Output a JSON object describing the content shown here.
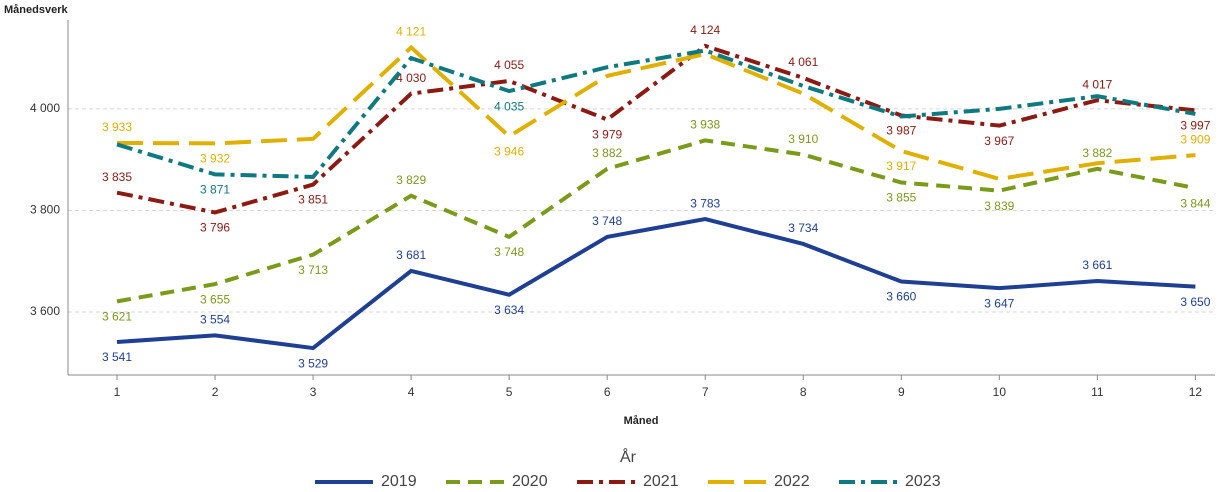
{
  "chart_data": {
    "type": "line",
    "y_label": "Månedsverk",
    "x_label": "Måned",
    "legend_title": "År",
    "x": [
      1,
      2,
      3,
      4,
      5,
      6,
      7,
      8,
      9,
      10,
      11,
      12
    ],
    "xlim": [
      0.5,
      12.2
    ],
    "xticks": [
      1,
      2,
      3,
      4,
      5,
      6,
      7,
      8,
      9,
      10,
      11,
      12
    ],
    "ylim": [
      3476,
      4175
    ],
    "yticks": [
      {
        "value": 3600,
        "label": "3 600"
      },
      {
        "value": 3800,
        "label": "3 800"
      },
      {
        "value": 4000,
        "label": "4 000"
      }
    ],
    "grid": true,
    "legend": "bottom",
    "series": [
      {
        "name": "2019",
        "color": "#1f3f93",
        "dash": "solid",
        "values": [
          3541,
          3554,
          3529,
          3681,
          3634,
          3748,
          3783,
          3734,
          3660,
          3647,
          3661,
          3650
        ],
        "value_labels": [
          "3 541",
          "3 554",
          "3 529",
          "3 681",
          "3 634",
          "3 748",
          "3 783",
          "3 734",
          "3 660",
          "3 647",
          "3 661",
          "3 650"
        ]
      },
      {
        "name": "2020",
        "color": "#7a9a1a",
        "dash": "dashed",
        "values": [
          3621,
          3655,
          3713,
          3829,
          3748,
          3882,
          3938,
          3910,
          3855,
          3839,
          3882,
          3844
        ],
        "value_labels": [
          "3 621",
          "3 655",
          "3 713",
          "3 829",
          "3 748",
          "3 882",
          "3 938",
          "3 910",
          "3 855",
          "3 839",
          "3 882",
          "3 844"
        ]
      },
      {
        "name": "2021",
        "color": "#8b1a12",
        "dash": "dashdot",
        "values": [
          3835,
          3796,
          3851,
          4030,
          4055,
          3979,
          4124,
          4061,
          3987,
          3967,
          4017,
          3997
        ],
        "value_labels": [
          "3 835",
          "3 796",
          "3 851",
          "4 030",
          "4 055",
          "3 979",
          "4 124",
          "4 061",
          "3 987",
          "3 967",
          "4 017",
          "3 997"
        ]
      },
      {
        "name": "2022",
        "color": "#e0b000",
        "dash": "longdash",
        "values": [
          3933,
          3932,
          3941,
          4121,
          3946,
          4065,
          4108,
          4030,
          3917,
          3862,
          3893,
          3909
        ],
        "value_labels": [
          "3 933",
          "3 932",
          null,
          "4 121",
          "3 946",
          null,
          null,
          null,
          "3 917",
          null,
          null,
          "3 909"
        ]
      },
      {
        "name": "2023",
        "color": "#0e7a80",
        "dash": "dashdot",
        "values": [
          3930,
          3871,
          3866,
          4100,
          4035,
          4082,
          4115,
          4045,
          3985,
          4000,
          4025,
          3990
        ],
        "value_labels": [
          null,
          "3 871",
          null,
          null,
          "4 035",
          null,
          null,
          null,
          null,
          null,
          null,
          null
        ]
      }
    ]
  }
}
